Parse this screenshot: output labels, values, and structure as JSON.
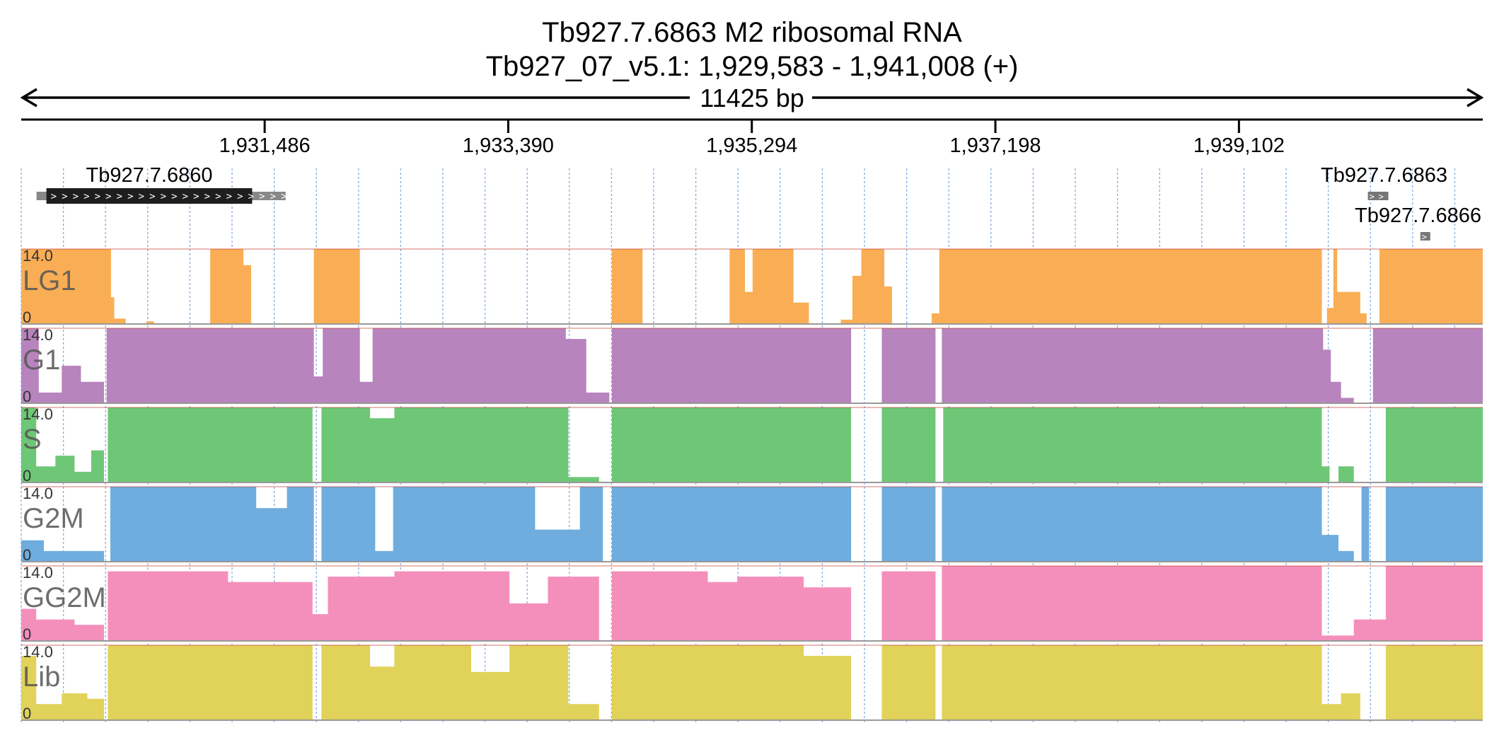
{
  "header": {
    "title": "Tb927.7.6863  M2 ribosomal RNA",
    "locus": "Tb927_07_v5.1: 1,929,583 - 1,941,008 (+)",
    "span": "11425 bp"
  },
  "chart_data": {
    "type": "area",
    "locus": {
      "chromosome": "Tb927_07_v5.1",
      "start": 1929583,
      "end": 1941008,
      "strand": "+"
    },
    "ticks": [
      {
        "pos": 1931486,
        "label": "1,931,486"
      },
      {
        "pos": 1933390,
        "label": "1,933,390"
      },
      {
        "pos": 1935294,
        "label": "1,935,294"
      },
      {
        "pos": 1937198,
        "label": "1,937,198"
      },
      {
        "pos": 1939102,
        "label": "1,939,102"
      }
    ],
    "genes": [
      {
        "name": "Tb927.7.6860",
        "start": 1929780,
        "end": 1931388,
        "utr_end": 1931650,
        "row": 0
      },
      {
        "name": "Tb927.7.6863",
        "start": 1940110,
        "end": 1940270,
        "row": 0
      },
      {
        "name": "Tb927.7.6866",
        "start": 1940520,
        "end": 1940590,
        "row": 1
      }
    ],
    "y_range": [
      0,
      14.0
    ],
    "scale_max_label": "14.0",
    "scale_min_label": "0",
    "tracks": [
      {
        "name": "LG1",
        "color": "#f9ae55",
        "segments": [
          [
            1929583,
            1930285,
            14
          ],
          [
            1930285,
            1930310,
            5
          ],
          [
            1930310,
            1930400,
            1
          ],
          [
            1930400,
            1930560,
            0
          ],
          [
            1930560,
            1930620,
            0.5
          ],
          [
            1930620,
            1931060,
            0
          ],
          [
            1931060,
            1931320,
            14
          ],
          [
            1931320,
            1931380,
            11
          ],
          [
            1931380,
            1931870,
            0
          ],
          [
            1931870,
            1932230,
            14
          ],
          [
            1932230,
            1934200,
            0
          ],
          [
            1934200,
            1934440,
            14
          ],
          [
            1934440,
            1935120,
            0
          ],
          [
            1935120,
            1935240,
            14
          ],
          [
            1935240,
            1935300,
            6
          ],
          [
            1935300,
            1935620,
            14
          ],
          [
            1935620,
            1935740,
            4
          ],
          [
            1935740,
            1935990,
            0
          ],
          [
            1935990,
            1936080,
            0.8
          ],
          [
            1936080,
            1936150,
            9
          ],
          [
            1936150,
            1936330,
            14
          ],
          [
            1936330,
            1936390,
            7
          ],
          [
            1936390,
            1936700,
            0
          ],
          [
            1936700,
            1936760,
            2
          ],
          [
            1936760,
            1936800,
            14
          ],
          [
            1936800,
            1939750,
            14
          ],
          [
            1939750,
            1939790,
            0
          ],
          [
            1939790,
            1939840,
            3
          ],
          [
            1939840,
            1939870,
            14
          ],
          [
            1939870,
            1940050,
            6
          ],
          [
            1940050,
            1940100,
            2
          ],
          [
            1940100,
            1940200,
            0
          ],
          [
            1940200,
            1940260,
            14
          ],
          [
            1940260,
            1941008,
            14
          ]
        ]
      },
      {
        "name": "G1",
        "color": "#b784bd",
        "segments": [
          [
            1929583,
            1929720,
            14
          ],
          [
            1929720,
            1929900,
            2
          ],
          [
            1929900,
            1930050,
            7
          ],
          [
            1930050,
            1930230,
            4
          ],
          [
            1930230,
            1930250,
            0
          ],
          [
            1930250,
            1931870,
            14
          ],
          [
            1931870,
            1931940,
            5
          ],
          [
            1931940,
            1932230,
            14
          ],
          [
            1932230,
            1932330,
            4
          ],
          [
            1932330,
            1932350,
            14
          ],
          [
            1932350,
            1933840,
            14
          ],
          [
            1933840,
            1934000,
            12
          ],
          [
            1934000,
            1934180,
            2
          ],
          [
            1934180,
            1934200,
            0
          ],
          [
            1934200,
            1936070,
            14
          ],
          [
            1936070,
            1936310,
            0
          ],
          [
            1936310,
            1936730,
            14
          ],
          [
            1936730,
            1936780,
            0
          ],
          [
            1936780,
            1936870,
            14
          ],
          [
            1936870,
            1939760,
            14
          ],
          [
            1939760,
            1939820,
            10
          ],
          [
            1939820,
            1939900,
            4
          ],
          [
            1939900,
            1940000,
            1
          ],
          [
            1940000,
            1940150,
            0
          ],
          [
            1940150,
            1941008,
            14
          ]
        ]
      },
      {
        "name": "S",
        "color": "#6ec776",
        "segments": [
          [
            1929583,
            1929700,
            14
          ],
          [
            1929700,
            1929850,
            3
          ],
          [
            1929850,
            1930000,
            5
          ],
          [
            1930000,
            1930130,
            2
          ],
          [
            1930130,
            1930230,
            6
          ],
          [
            1930230,
            1930260,
            0
          ],
          [
            1930260,
            1931860,
            14
          ],
          [
            1931860,
            1931930,
            0
          ],
          [
            1931930,
            1932310,
            14
          ],
          [
            1932310,
            1932500,
            12
          ],
          [
            1932500,
            1933860,
            14
          ],
          [
            1933860,
            1934100,
            1
          ],
          [
            1934100,
            1934200,
            0
          ],
          [
            1934200,
            1936070,
            14
          ],
          [
            1936070,
            1936310,
            0
          ],
          [
            1936310,
            1936730,
            14
          ],
          [
            1936730,
            1936790,
            0
          ],
          [
            1936790,
            1939750,
            14
          ],
          [
            1939750,
            1939810,
            3
          ],
          [
            1939810,
            1939880,
            0
          ],
          [
            1939880,
            1940000,
            3
          ],
          [
            1940000,
            1940250,
            0
          ],
          [
            1940250,
            1941008,
            14
          ]
        ]
      },
      {
        "name": "G2M",
        "color": "#6eadde",
        "segments": [
          [
            1929583,
            1929760,
            4
          ],
          [
            1929760,
            1929900,
            2
          ],
          [
            1929900,
            1930100,
            2
          ],
          [
            1930100,
            1930230,
            2
          ],
          [
            1930230,
            1930280,
            0
          ],
          [
            1930280,
            1931420,
            14
          ],
          [
            1931420,
            1931660,
            10
          ],
          [
            1931660,
            1931870,
            14
          ],
          [
            1931870,
            1931930,
            0
          ],
          [
            1931930,
            1932350,
            14
          ],
          [
            1932350,
            1932490,
            2
          ],
          [
            1932490,
            1933600,
            14
          ],
          [
            1933600,
            1933950,
            6
          ],
          [
            1933950,
            1934130,
            14
          ],
          [
            1934130,
            1934200,
            0
          ],
          [
            1934200,
            1936070,
            14
          ],
          [
            1936070,
            1936310,
            0
          ],
          [
            1936310,
            1936730,
            14
          ],
          [
            1936730,
            1936780,
            0
          ],
          [
            1936780,
            1939750,
            14
          ],
          [
            1939750,
            1939880,
            5
          ],
          [
            1939880,
            1940000,
            2
          ],
          [
            1940000,
            1940060,
            0
          ],
          [
            1940060,
            1940120,
            14
          ],
          [
            1940120,
            1940250,
            0
          ],
          [
            1940250,
            1941008,
            14
          ]
        ]
      },
      {
        "name": "GG2M",
        "color": "#f48fbb",
        "segments": [
          [
            1929583,
            1929700,
            6
          ],
          [
            1929700,
            1930000,
            4
          ],
          [
            1930000,
            1930230,
            3
          ],
          [
            1930230,
            1930260,
            0
          ],
          [
            1930260,
            1931200,
            13
          ],
          [
            1931200,
            1931860,
            11
          ],
          [
            1931860,
            1931980,
            5
          ],
          [
            1931980,
            1932500,
            12
          ],
          [
            1932500,
            1933400,
            13
          ],
          [
            1933400,
            1933700,
            7
          ],
          [
            1933700,
            1934100,
            12
          ],
          [
            1934100,
            1934200,
            0
          ],
          [
            1934200,
            1934950,
            13
          ],
          [
            1934950,
            1935180,
            11
          ],
          [
            1935180,
            1935700,
            12
          ],
          [
            1935700,
            1936070,
            10
          ],
          [
            1936070,
            1936310,
            0
          ],
          [
            1936310,
            1936730,
            13
          ],
          [
            1936730,
            1936780,
            0
          ],
          [
            1936780,
            1939750,
            14
          ],
          [
            1939750,
            1939900,
            1
          ],
          [
            1939900,
            1940000,
            1
          ],
          [
            1940000,
            1940250,
            4
          ],
          [
            1940250,
            1941008,
            14
          ]
        ]
      },
      {
        "name": "Lib",
        "color": "#e1d25a",
        "segments": [
          [
            1929583,
            1929700,
            12
          ],
          [
            1929700,
            1929900,
            3
          ],
          [
            1929900,
            1930100,
            5
          ],
          [
            1930100,
            1930230,
            4
          ],
          [
            1930230,
            1930260,
            0
          ],
          [
            1930260,
            1931860,
            14
          ],
          [
            1931860,
            1931930,
            0
          ],
          [
            1931930,
            1932310,
            14
          ],
          [
            1932310,
            1932500,
            10
          ],
          [
            1932500,
            1933100,
            14
          ],
          [
            1933100,
            1933400,
            9
          ],
          [
            1933400,
            1933860,
            14
          ],
          [
            1933860,
            1934100,
            3
          ],
          [
            1934100,
            1934200,
            0
          ],
          [
            1934200,
            1935700,
            14
          ],
          [
            1935700,
            1936070,
            12
          ],
          [
            1936070,
            1936310,
            0
          ],
          [
            1936310,
            1936730,
            14
          ],
          [
            1936730,
            1936780,
            0
          ],
          [
            1936780,
            1939750,
            14
          ],
          [
            1939750,
            1939900,
            3
          ],
          [
            1939900,
            1940050,
            5
          ],
          [
            1940050,
            1940250,
            0
          ],
          [
            1940250,
            1941008,
            14
          ]
        ]
      }
    ]
  }
}
